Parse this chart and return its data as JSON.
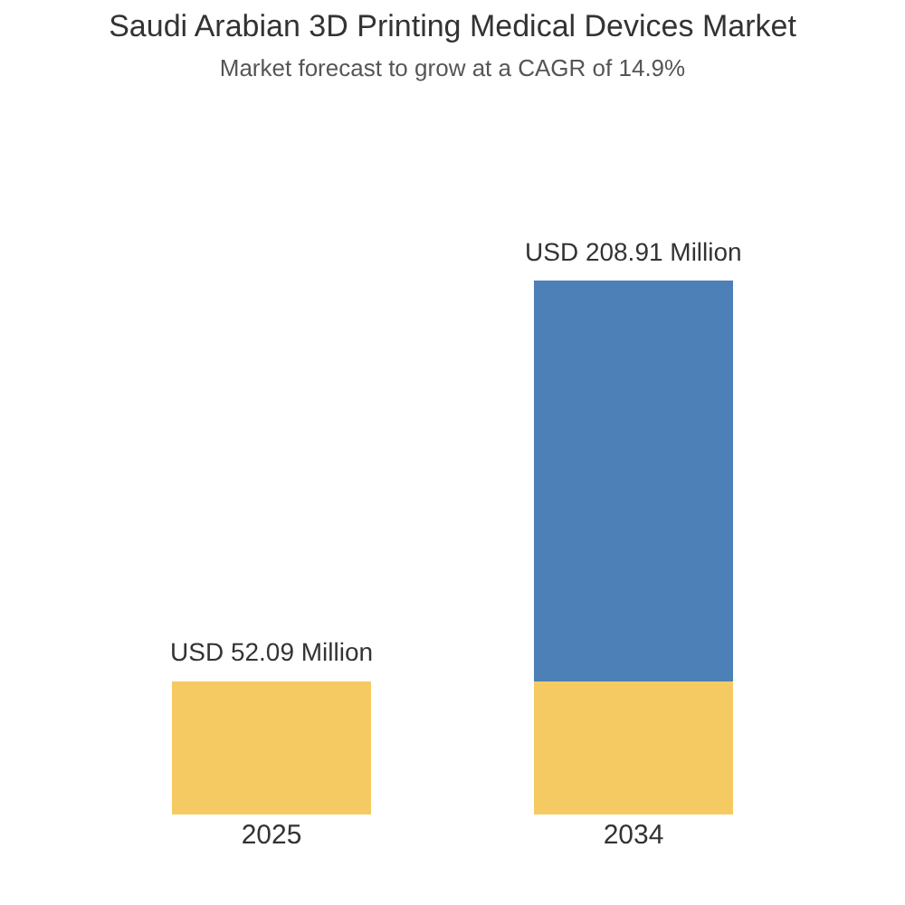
{
  "chart_data": {
    "type": "bar",
    "title": "Saudi Arabian 3D Printing Medical Devices Market",
    "subtitle": "Market forecast to grow at a CAGR of 14.9%",
    "categories": [
      "2025",
      "2034"
    ],
    "stacked": true,
    "series": [
      {
        "color": "#f6ca62",
        "values": [
          52.09,
          52.09
        ],
        "value_labels": [
          "USD 52.09 Million",
          null
        ]
      },
      {
        "color": "#4d80b6",
        "values": [
          null,
          156.82
        ],
        "value_labels": [
          null,
          null
        ]
      }
    ],
    "totals": [
      null,
      "USD 208.91 Million"
    ],
    "tick_labels": "x"
  }
}
